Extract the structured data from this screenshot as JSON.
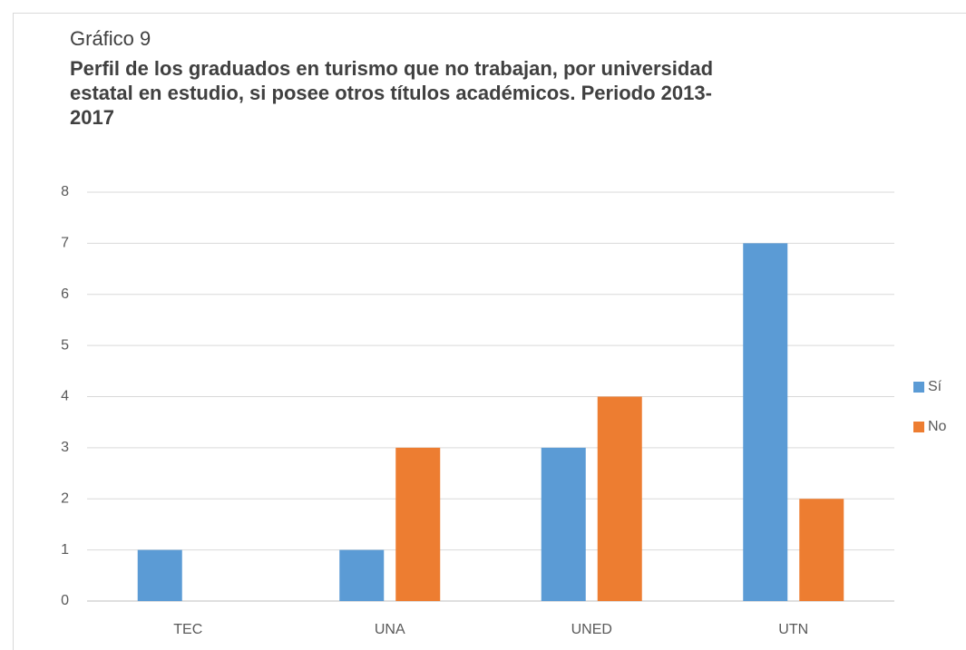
{
  "chart_data": {
    "type": "bar",
    "label": "Gráfico 9",
    "title": "Perfil de los graduados en turismo que no trabajan, por universidad estatal en estudio, si posee otros títulos académicos. Periodo 2013-2017",
    "categories": [
      "TEC",
      "UNA",
      "UNED",
      "UTN"
    ],
    "series": [
      {
        "name": "Sí",
        "color": "#5b9bd5",
        "values": [
          1,
          1,
          3,
          7
        ]
      },
      {
        "name": "No",
        "color": "#ed7d31",
        "values": [
          0,
          3,
          4,
          2
        ]
      }
    ],
    "ylim": [
      0,
      8
    ],
    "yticks": [
      0,
      1,
      2,
      3,
      4,
      5,
      6,
      7,
      8
    ],
    "grid": true,
    "legend": "right"
  }
}
